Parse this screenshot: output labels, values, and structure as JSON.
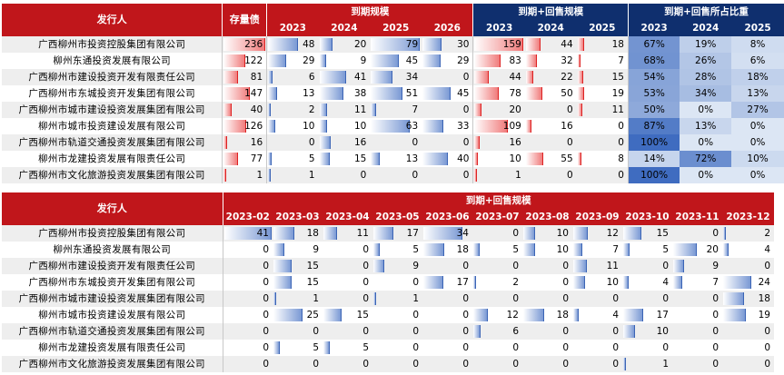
{
  "table1": {
    "issuer_header": "发行人",
    "stock_header": "存量债",
    "group_maturity": "到期规模",
    "group_maturity_putback": "到期+回售规模",
    "group_ratio": "到期+回售所占比重",
    "maturity_years": [
      "2023",
      "2024",
      "2025",
      "2026"
    ],
    "putback_years": [
      "2023",
      "2024",
      "2025"
    ],
    "ratio_years": [
      "2023",
      "2024",
      "2025"
    ],
    "rows": [
      {
        "name": "广西柳州市投资控股集团有限公司",
        "stock": 236,
        "maturity": [
          48,
          20,
          79,
          30
        ],
        "putback": [
          159,
          44,
          18
        ],
        "ratio": [
          "67%",
          "19%",
          "8%"
        ]
      },
      {
        "name": "柳州东通投资发展有限公司",
        "stock": 122,
        "maturity": [
          29,
          9,
          45,
          29
        ],
        "putback": [
          83,
          32,
          7
        ],
        "ratio": [
          "68%",
          "26%",
          "6%"
        ]
      },
      {
        "name": "广西柳州市建设投资开发有限责任公司",
        "stock": 81,
        "maturity": [
          6,
          41,
          34,
          0
        ],
        "putback": [
          44,
          22,
          15
        ],
        "ratio": [
          "54%",
          "28%",
          "18%"
        ]
      },
      {
        "name": "广西柳州市东城投资开发集团有限公司",
        "stock": 147,
        "maturity": [
          13,
          38,
          51,
          45
        ],
        "putback": [
          78,
          50,
          19
        ],
        "ratio": [
          "53%",
          "34%",
          "13%"
        ]
      },
      {
        "name": "广西柳州市城市建设投资发展集团有限公司",
        "stock": 40,
        "maturity": [
          2,
          11,
          7,
          0
        ],
        "putback": [
          20,
          0,
          11
        ],
        "ratio": [
          "50%",
          "0%",
          "27%"
        ]
      },
      {
        "name": "柳州市城市投资建设发展有限公司",
        "stock": 126,
        "maturity": [
          10,
          10,
          63,
          33
        ],
        "putback": [
          109,
          16,
          0
        ],
        "ratio": [
          "87%",
          "13%",
          "0%"
        ]
      },
      {
        "name": "广西柳州市轨道交通投资发展集团有限公司",
        "stock": 16,
        "maturity": [
          0,
          16,
          0,
          0
        ],
        "putback": [
          16,
          0,
          0
        ],
        "ratio": [
          "100%",
          "0%",
          "0%"
        ]
      },
      {
        "name": "柳州市龙建投资发展有限责任公司",
        "stock": 77,
        "maturity": [
          5,
          15,
          13,
          40
        ],
        "putback": [
          10,
          55,
          8
        ],
        "ratio": [
          "14%",
          "72%",
          "10%"
        ]
      },
      {
        "name": "广西柳州市文化旅游投资发展集团有限公司",
        "stock": 1,
        "maturity": [
          1,
          0,
          0,
          0
        ],
        "putback": [
          1,
          0,
          0
        ],
        "ratio": [
          "100%",
          "0%",
          "0%"
        ]
      }
    ]
  },
  "table2": {
    "issuer_header": "发行人",
    "group": "到期+回售规模",
    "months": [
      "2023-02",
      "2023-03",
      "2023-04",
      "2023-05",
      "2023-06",
      "2023-07",
      "2023-08",
      "2023-09",
      "2023-10",
      "2023-11",
      "2023-12"
    ],
    "rows": [
      {
        "name": "广西柳州市投资控股集团有限公司",
        "values": [
          41,
          18,
          11,
          17,
          34,
          0,
          10,
          12,
          15,
          0,
          2
        ]
      },
      {
        "name": "柳州东通投资发展有限公司",
        "values": [
          0,
          9,
          0,
          5,
          18,
          5,
          10,
          7,
          5,
          20,
          4
        ]
      },
      {
        "name": "广西柳州市建设投资开发有限责任公司",
        "values": [
          0,
          15,
          0,
          9,
          0,
          0,
          0,
          11,
          0,
          9,
          0
        ]
      },
      {
        "name": "广西柳州市东城投资开发集团有限公司",
        "values": [
          0,
          15,
          0,
          0,
          17,
          2,
          0,
          10,
          4,
          7,
          24
        ]
      },
      {
        "name": "广西柳州市城市建设投资发展集团有限公司",
        "values": [
          0,
          1,
          0,
          1,
          0,
          0,
          0,
          0,
          0,
          0,
          18
        ]
      },
      {
        "name": "柳州市城市投资建设发展有限公司",
        "values": [
          0,
          25,
          15,
          0,
          0,
          12,
          18,
          4,
          17,
          0,
          19
        ]
      },
      {
        "name": "广西柳州市轨道交通投资发展集团有限公司",
        "values": [
          0,
          0,
          0,
          0,
          0,
          6,
          0,
          0,
          10,
          0,
          0
        ]
      },
      {
        "name": "柳州市龙建投资发展有限责任公司",
        "values": [
          0,
          5,
          5,
          0,
          0,
          0,
          0,
          0,
          0,
          0,
          0
        ]
      },
      {
        "name": "广西柳州市文化旅游投资发展集团有限公司",
        "values": [
          0,
          0,
          0,
          0,
          0,
          0,
          0,
          0,
          1,
          0,
          0
        ]
      }
    ]
  },
  "colors": {
    "header_red": "#c0161b",
    "header_navy": "#0f2f6e",
    "bar_blue": "#7a99d4",
    "bar_red": "#f07b7b",
    "ratio_light": "#dce6f4",
    "ratio_dark": "#3f6cc0"
  }
}
